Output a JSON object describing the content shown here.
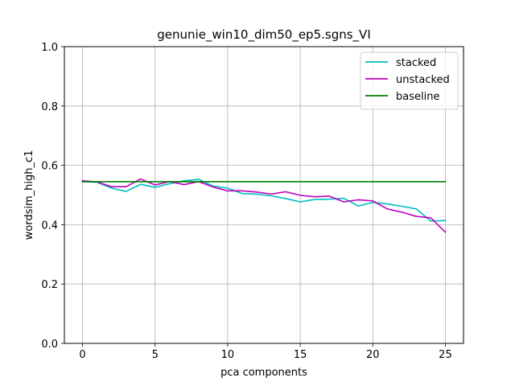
{
  "chart_data": {
    "type": "line",
    "title": "genunie_win10_dim50_ep5.sgns_VI",
    "xlabel": "pca components",
    "ylabel": "wordsim_high_c1",
    "xlim": [
      -1.25,
      26.25
    ],
    "ylim": [
      0.0,
      1.0
    ],
    "xticks": [
      0,
      5,
      10,
      15,
      20,
      25
    ],
    "yticks": [
      0.0,
      0.2,
      0.4,
      0.6,
      0.8,
      1.0
    ],
    "ytick_labels": [
      "0.0",
      "0.2",
      "0.4",
      "0.6",
      "0.8",
      "1.0"
    ],
    "grid": true,
    "legend_position": "top-right",
    "x": [
      0,
      1,
      2,
      3,
      4,
      5,
      6,
      7,
      8,
      9,
      10,
      11,
      12,
      13,
      14,
      15,
      16,
      17,
      18,
      19,
      20,
      21,
      22,
      23,
      24,
      25
    ],
    "series": [
      {
        "name": "stacked",
        "color": "#00bfbf",
        "values": [
          0.545,
          0.543,
          0.523,
          0.512,
          0.536,
          0.526,
          0.538,
          0.548,
          0.553,
          0.53,
          0.523,
          0.505,
          0.503,
          0.497,
          0.488,
          0.477,
          0.485,
          0.486,
          0.489,
          0.463,
          0.475,
          0.47,
          0.462,
          0.453,
          0.412,
          0.414
        ]
      },
      {
        "name": "unstacked",
        "color": "#bf00bf",
        "values": [
          0.548,
          0.544,
          0.528,
          0.528,
          0.554,
          0.534,
          0.545,
          0.535,
          0.545,
          0.527,
          0.514,
          0.514,
          0.51,
          0.503,
          0.511,
          0.499,
          0.494,
          0.496,
          0.477,
          0.484,
          0.48,
          0.453,
          0.442,
          0.428,
          0.423,
          0.375
        ]
      },
      {
        "name": "baseline",
        "color": "#008000",
        "values": [
          0.545,
          0.545,
          0.545,
          0.545,
          0.545,
          0.545,
          0.545,
          0.545,
          0.545,
          0.545,
          0.545,
          0.545,
          0.545,
          0.545,
          0.545,
          0.545,
          0.545,
          0.545,
          0.545,
          0.545,
          0.545,
          0.545,
          0.545,
          0.545,
          0.545,
          0.545
        ]
      }
    ]
  }
}
